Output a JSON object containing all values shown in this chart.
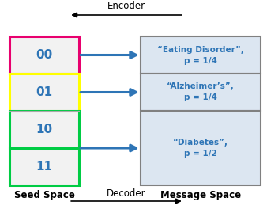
{
  "background_color": "#ffffff",
  "seed_labels": [
    "00",
    "01",
    "10",
    "11"
  ],
  "seed_box_colors": [
    "#e8006e",
    "#ffff00",
    "#00cc44",
    "#00cc44"
  ],
  "seed_box_fill": "#f2f2f2",
  "message_labels": [
    "“Eating Disorder”,\np = 1/4",
    "“Alzheimer’s”,\np = 1/4",
    "“Diabetes”,\np = 1/2"
  ],
  "message_box_fill": "#dce6f1",
  "message_box_edge": "#808080",
  "arrow_color": "#2e75b6",
  "text_color": "#2e75b6",
  "label_color": "#000000",
  "encoder_label": "Encoder",
  "decoder_label": "Decoder",
  "seed_space_label": "Seed Space",
  "message_space_label": "Message Space",
  "figsize": [
    3.38,
    2.74
  ],
  "dpi": 100
}
